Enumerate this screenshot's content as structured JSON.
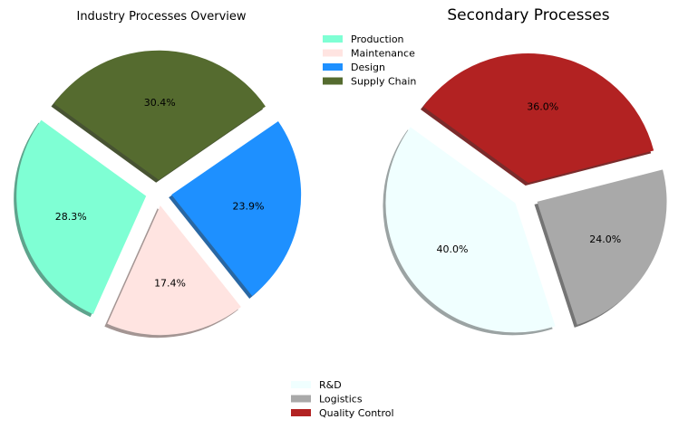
{
  "chart_data": [
    {
      "type": "pie",
      "title": "Industry Processes Overview",
      "categories": [
        "Production",
        "Maintenance",
        "Design",
        "Supply Chain"
      ],
      "values": [
        28.3,
        17.4,
        23.9,
        30.4
      ],
      "labels": [
        "28.3%",
        "17.4%",
        "23.9%",
        "30.4%"
      ],
      "colors": [
        "#7fffd4",
        "#ffe4e1",
        "#1e90ff",
        "#556b2f"
      ],
      "explode": [
        0.1,
        0.1,
        0.1,
        0.1
      ],
      "shadow": true,
      "legend_placement": "top-right"
    },
    {
      "type": "pie",
      "title": "Secondary Processes",
      "categories": [
        "R&D",
        "Logistics",
        "Quality Control"
      ],
      "values": [
        40.0,
        24.0,
        36.0
      ],
      "labels": [
        "40.0%",
        "24.0%",
        "36.0%"
      ],
      "colors": [
        "#f0ffff",
        "#a9a9a9",
        "#b22222"
      ],
      "explode": [
        0.1,
        0.1,
        0.1
      ],
      "shadow": true,
      "legend_placement": "bottom-center"
    }
  ]
}
